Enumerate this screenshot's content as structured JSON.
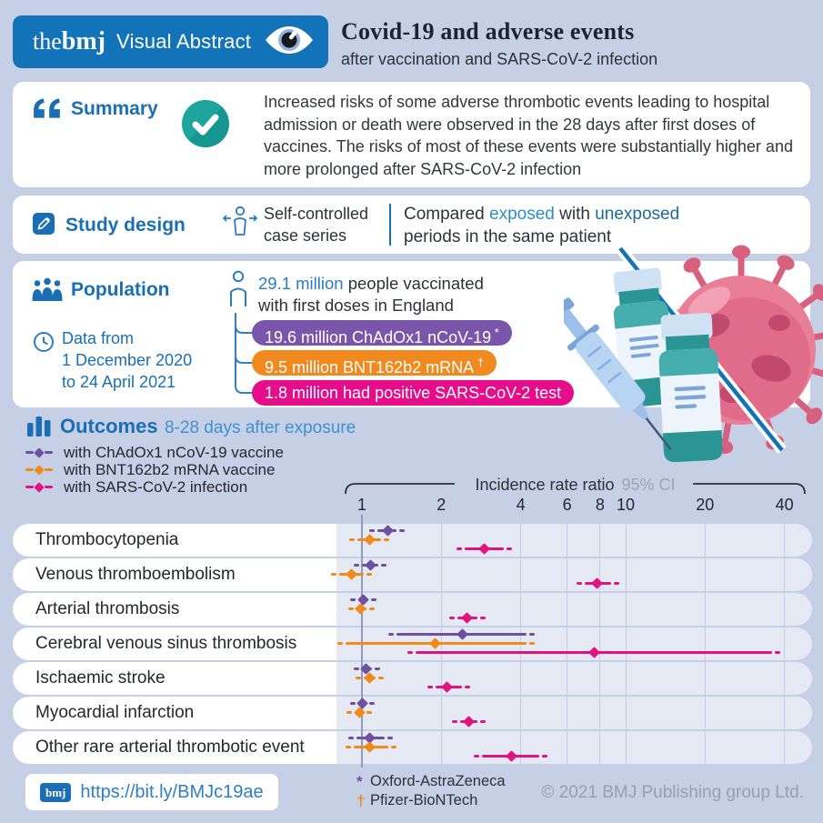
{
  "header": {
    "logo_the": "the",
    "logo_bmj": "bmj",
    "logo_label": "Visual Abstract",
    "title": "Covid-19 and adverse events",
    "subtitle": "after vaccination and SARS-CoV-2 infection"
  },
  "summary": {
    "heading": "Summary",
    "text": "Increased risks of some adverse thrombotic events leading to hospital admission or death were observed in the 28 days after first doses of vaccines. The risks of most of these events were substantially higher and more prolonged after SARS-CoV-2 infection"
  },
  "study_design": {
    "heading": "Study design",
    "method_line1": "Self-controlled",
    "method_line2": "case series",
    "comparison": {
      "part1": "Compared ",
      "exposed": "exposed",
      "part2": " with ",
      "unexposed": "unexposed",
      "line2": "periods in the same patient"
    }
  },
  "population": {
    "heading": "Population",
    "date_line1": "Data from",
    "date_line2": "1 December 2020",
    "date_line3": "to 24 April 2021",
    "total_highlight": "29.1 million",
    "total_rest": " people vaccinated",
    "total_line2": "with first doses in England",
    "groups": [
      {
        "text": "19.6 million ChAdOx1 nCoV-19",
        "symbol": "*",
        "color": "#7a56ab"
      },
      {
        "text": "9.5 million BNT162b2 mRNA",
        "symbol": "†",
        "color": "#f18a1e"
      },
      {
        "text": "1.8 million had positive SARS-CoV-2 test",
        "symbol": "",
        "color": "#e50d8a"
      }
    ]
  },
  "outcomes": {
    "heading": "Outcomes",
    "subheading": "8-28 days after exposure"
  },
  "chart_data": {
    "type": "scatter",
    "variant": "forest-plot",
    "x_scale": "log",
    "x_ticks": [
      1,
      2,
      4,
      6,
      8,
      10,
      20,
      40
    ],
    "x_range": [
      0.8,
      45
    ],
    "axis_title": "Incidence rate ratio",
    "axis_subtitle": "95% CI",
    "grid": true,
    "legend_position": "top-left",
    "categories": [
      "Thrombocytopenia",
      "Venous thromboembolism",
      "Arterial thrombosis",
      "Cerebral venous sinus thrombosis",
      "Ischaemic stroke",
      "Myocardial infarction",
      "Other rare arterial thrombotic event"
    ],
    "series": [
      {
        "name": "with ChAdOx1 nCoV-19 vaccine",
        "color": "#6f4fa0",
        "values": [
          1.25,
          1.08,
          1.01,
          2.4,
          1.04,
          1.0,
          1.07
        ],
        "ci_low": [
          1.14,
          1.0,
          0.97,
          1.35,
          1.0,
          0.97,
          0.95
        ],
        "ci_high": [
          1.35,
          1.15,
          1.06,
          4.2,
          1.09,
          1.04,
          1.22
        ]
      },
      {
        "name": "with BNT162b2 mRNA vaccine",
        "color": "#f18a1e",
        "values": [
          1.07,
          0.91,
          0.99,
          1.9,
          1.07,
          0.98,
          1.07
        ],
        "ci_low": [
          0.96,
          0.82,
          0.95,
          0.87,
          1.02,
          0.94,
          0.93
        ],
        "ci_high": [
          1.18,
          1.02,
          1.04,
          4.2,
          1.13,
          1.02,
          1.26
        ]
      },
      {
        "name": "with SARS-CoV-2 infection",
        "color": "#e0137f",
        "values": [
          2.9,
          7.8,
          2.5,
          7.6,
          2.1,
          2.55,
          3.7
        ],
        "ci_low": [
          2.45,
          7.0,
          2.3,
          1.6,
          1.9,
          2.35,
          2.85
        ],
        "ci_high": [
          3.45,
          8.8,
          2.75,
          36,
          2.4,
          2.75,
          4.7
        ]
      }
    ]
  },
  "footer": {
    "url": "https://bit.ly/BMJc19ae",
    "logo": "bmj",
    "footnotes": [
      {
        "symbol": "*",
        "label": "Oxford-AstraZeneca",
        "color": "#6f4fa0"
      },
      {
        "symbol": "†",
        "label": "Pfizer-BioNTech",
        "color": "#f18a1e"
      }
    ],
    "copyright": "© 2021 BMJ Publishing group Ltd."
  },
  "colors": {
    "brand_blue": "#1273b9",
    "heading_blue": "#1a6fb4",
    "light_blue_text": "#4090cf",
    "exposed_blue": "#2e8ecb",
    "unexposed_blue": "#1c6a96",
    "teal_check": "#1da49d",
    "purple": "#6f4fa0",
    "orange": "#f18a1e",
    "magenta": "#e0137f",
    "background": "#c5d0e7",
    "copyright_gray": "#95a0b4"
  }
}
